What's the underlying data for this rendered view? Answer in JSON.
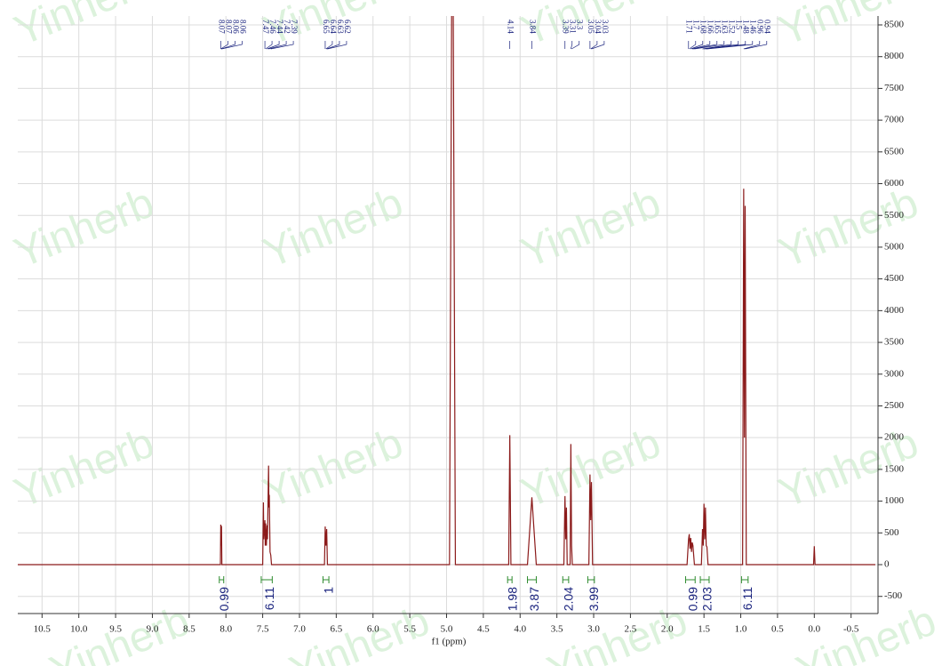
{
  "chart_data": {
    "type": "line",
    "x_label": "f1 (ppm)",
    "watermark": "Yinherb",
    "xlim": [
      10.83,
      -0.83
    ],
    "ylim": [
      -770,
      8640
    ],
    "xticks": [
      10.5,
      {
        "value": 10,
        "label": "10.0"
      },
      9.5,
      {
        "value": 9,
        "label": "9.0"
      },
      8.5,
      {
        "value": 8,
        "label": "8.0"
      },
      7.5,
      {
        "value": 7,
        "label": "7.0"
      },
      6.5,
      {
        "value": 6,
        "label": "6.0"
      },
      5.5,
      {
        "value": 5,
        "label": "5.0"
      },
      4.5,
      {
        "value": 4,
        "label": "4.0"
      },
      3.5,
      {
        "value": 3,
        "label": "3.0"
      },
      2.5,
      {
        "value": 2,
        "label": "2.0"
      },
      1.5,
      {
        "value": 1,
        "label": "1.0"
      },
      0.5,
      {
        "value": 0,
        "label": "0.0"
      },
      -0.5
    ],
    "yticks": [
      -500,
      0,
      500,
      1000,
      1500,
      2000,
      2500,
      3000,
      3500,
      4000,
      4500,
      5000,
      5500,
      6000,
      6500,
      7000,
      7500,
      8000,
      8500
    ],
    "grid": true,
    "series": [
      {
        "color": "#8b1a1a",
        "x": [
          10.83,
          8.075,
          8.07,
          8.065,
          8.06,
          8.055,
          7.5,
          7.49,
          7.485,
          7.47,
          7.465,
          7.46,
          7.45,
          7.44,
          7.435,
          7.42,
          7.415,
          7.41,
          7.4,
          7.39,
          7.38,
          6.66,
          6.65,
          6.64,
          6.63,
          6.62,
          4.96,
          4.92,
          4.88,
          4.155,
          4.14,
          4.125,
          3.9,
          3.84,
          3.78,
          3.405,
          3.39,
          3.38,
          3.37,
          3.36,
          3.32,
          3.31,
          3.3,
          3.29,
          3.065,
          3.05,
          3.04,
          3.03,
          3.015,
          1.73,
          1.71,
          1.7,
          1.69,
          1.68,
          1.67,
          1.66,
          1.65,
          1.63,
          1.535,
          1.52,
          1.51,
          1.5,
          1.49,
          1.48,
          1.47,
          1.46,
          1.445,
          0.975,
          0.96,
          0.95,
          0.94,
          0.925,
          0.01,
          0,
          -0.01,
          -0.83
        ],
        "values": [
          0,
          0,
          630,
          300,
          610,
          0,
          0,
          980,
          400,
          700,
          300,
          650,
          300,
          620,
          400,
          1560,
          900,
          1100,
          200,
          150,
          0,
          0,
          600,
          300,
          560,
          0,
          0,
          12000,
          0,
          0,
          2040,
          0,
          0,
          1060,
          0,
          0,
          1080,
          400,
          900,
          0,
          0,
          1900,
          300,
          0,
          0,
          1420,
          700,
          1300,
          0,
          0,
          400,
          480,
          250,
          420,
          200,
          350,
          300,
          0,
          0,
          560,
          300,
          960,
          400,
          900,
          300,
          280,
          0,
          0,
          5920,
          2000,
          5650,
          0,
          0,
          290,
          0,
          0
        ]
      }
    ],
    "peak_labels": [
      8.07,
      8.07,
      8.06,
      8.06,
      7.47,
      7.46,
      7.44,
      7.42,
      7.39,
      6.65,
      6.64,
      6.63,
      6.62,
      4.14,
      3.84,
      3.39,
      3.31,
      3.3,
      3.05,
      3.04,
      3.03,
      1.71,
      1.7,
      1.68,
      1.66,
      1.65,
      1.63,
      1.52,
      1.5,
      1.48,
      1.46,
      0.96,
      0.94
    ],
    "integrals": [
      {
        "from": 8.09,
        "to": 8.03,
        "value": 0.99
      },
      {
        "from": 7.52,
        "to": 7.37,
        "value": 6.11
      },
      {
        "from": 6.68,
        "to": 6.6,
        "value": 1.0
      },
      {
        "from": 4.17,
        "to": 4.11,
        "value": 1.98
      },
      {
        "from": 3.9,
        "to": 3.78,
        "value": 3.87
      },
      {
        "from": 3.42,
        "to": 3.34,
        "value": 2.04
      },
      {
        "from": 3.08,
        "to": 2.99,
        "value": 3.99
      },
      {
        "from": 1.75,
        "to": 1.62,
        "value": 0.99
      },
      {
        "from": 1.55,
        "to": 1.43,
        "value": 2.03
      },
      {
        "from": 0.99,
        "to": 0.9,
        "value": 6.11
      }
    ]
  }
}
